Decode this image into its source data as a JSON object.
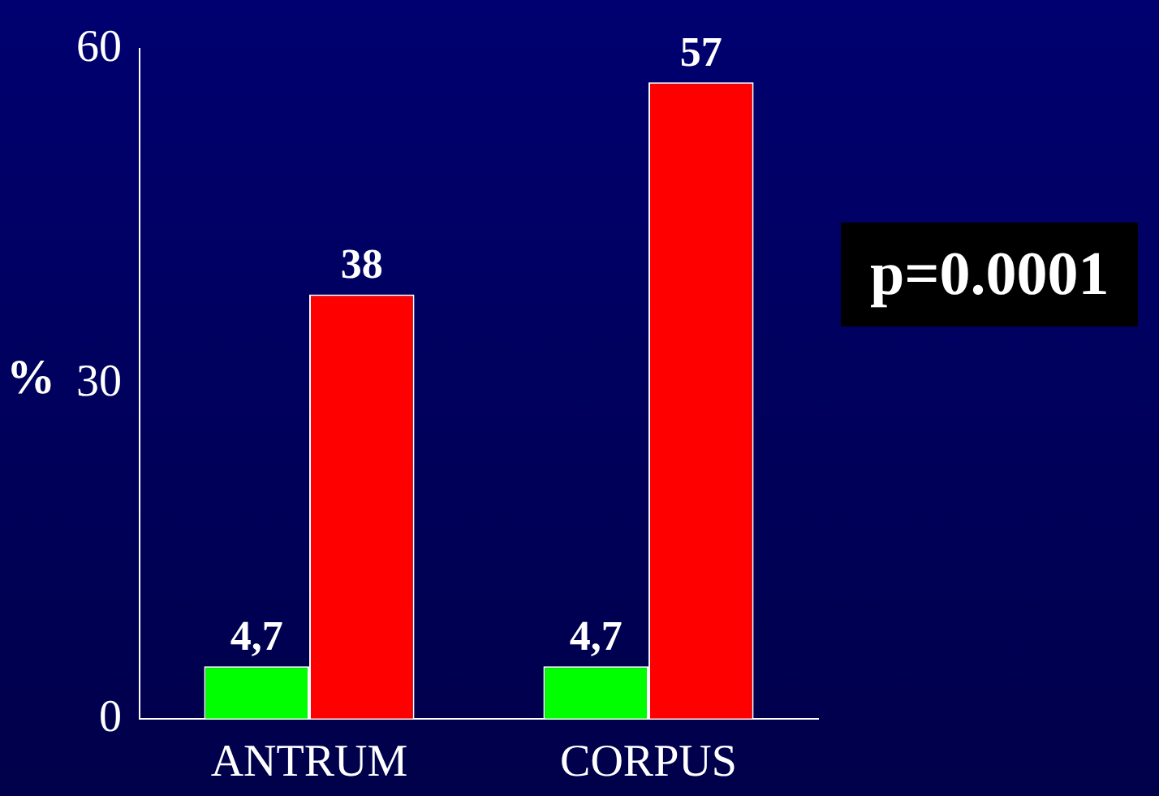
{
  "chart_data": {
    "type": "bar",
    "ylabel": "%",
    "categories": [
      "ANTRUM",
      "CORPUS"
    ],
    "series": [
      {
        "color": "#00ff00",
        "values": [
          4.7,
          4.7
        ],
        "value_labels": [
          "4,7",
          "4,7"
        ]
      },
      {
        "color": "#ff0000",
        "values": [
          38,
          57
        ],
        "value_labels": [
          "38",
          "57"
        ]
      }
    ],
    "ylim": [
      0,
      60
    ],
    "yticks": [
      0,
      30,
      60
    ],
    "grid": false,
    "legend": false,
    "annotations": [
      "p=0.0001"
    ]
  }
}
